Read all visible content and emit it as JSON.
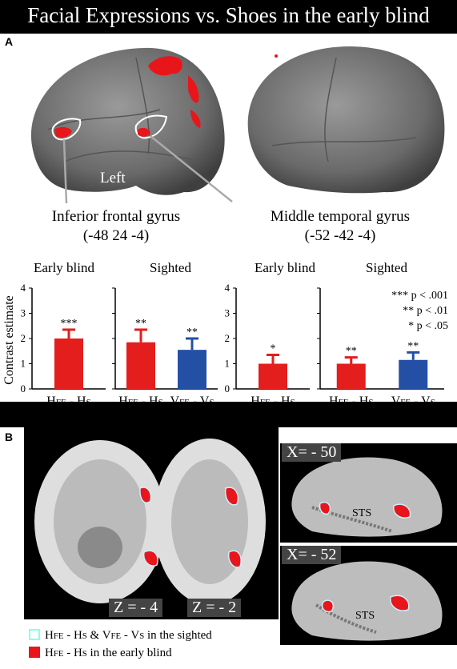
{
  "figure_title": "Facial Expressions vs. Shoes in the early blind",
  "panelA": {
    "letter": "A",
    "brain_label": "Left",
    "region1": {
      "name": "Inferior frontal gyrus",
      "coords": "(-48 24 -4)"
    },
    "region2": {
      "name": "Middle temporal gyrus",
      "coords": "(-52 -42 -4)"
    },
    "group_labels": [
      "Early blind",
      "Sighted",
      "Early blind",
      "Sighted"
    ],
    "ylabel": "Contrast estimate",
    "yticks": [
      "0",
      "1",
      "2",
      "3",
      "4"
    ],
    "sig_legend": [
      "*** p < .001",
      "** p < .01",
      "* p < .05"
    ],
    "colors": {
      "red": "#e41d1d",
      "blue": "#2350a5",
      "red_blob": "#e8161a"
    }
  },
  "chart_data": [
    {
      "type": "bar",
      "title": "",
      "ylabel": "Contrast estimate",
      "ylim": [
        0,
        4
      ],
      "group": "Early blind",
      "region": "Inferior frontal gyrus",
      "categories": [
        "HFE - HS"
      ],
      "values": [
        2.0
      ],
      "errors": [
        0.35
      ],
      "significance": [
        "***"
      ],
      "colors": [
        "#e41d1d"
      ]
    },
    {
      "type": "bar",
      "title": "",
      "ylim": [
        0,
        4
      ],
      "group": "Sighted",
      "region": "Inferior frontal gyrus",
      "categories": [
        "HFE - HS",
        "VFE - VS"
      ],
      "values": [
        1.85,
        1.55
      ],
      "errors": [
        0.5,
        0.45
      ],
      "significance": [
        "**",
        "**"
      ],
      "colors": [
        "#e41d1d",
        "#2350a5"
      ]
    },
    {
      "type": "bar",
      "title": "",
      "ylim": [
        0,
        4
      ],
      "group": "Early blind",
      "region": "Middle temporal gyrus",
      "categories": [
        "HFE - HS"
      ],
      "values": [
        1.0
      ],
      "errors": [
        0.35
      ],
      "significance": [
        "*"
      ],
      "colors": [
        "#e41d1d"
      ]
    },
    {
      "type": "bar",
      "title": "",
      "ylim": [
        0,
        4
      ],
      "group": "Sighted",
      "region": "Middle temporal gyrus",
      "categories": [
        "HFE - HS",
        "VFE - VS"
      ],
      "values": [
        1.0,
        1.15
      ],
      "errors": [
        0.25,
        0.3
      ],
      "significance": [
        "**",
        "**"
      ],
      "colors": [
        "#e41d1d",
        "#2350a5"
      ]
    }
  ],
  "panelB": {
    "letter": "B",
    "axial_labels": [
      "Z = - 4",
      "Z = - 2"
    ],
    "sagittal_labels": [
      "X= - 50",
      "X= - 52"
    ],
    "sts_label": "STS",
    "legend": [
      {
        "text_main_1": "H",
        "sub_1": "FE",
        "mid_1": " - H",
        "sub_2": "S",
        "mid_2": " & V",
        "sub_3": "FE",
        "mid_3": " - V",
        "sub_4": "S",
        "tail": " in the sighted",
        "style": "outline"
      },
      {
        "text_main_1": "H",
        "sub_1": "FE",
        "mid_1": " - H",
        "sub_2": "S",
        "tail": " in the early blind",
        "style": "red"
      }
    ]
  }
}
